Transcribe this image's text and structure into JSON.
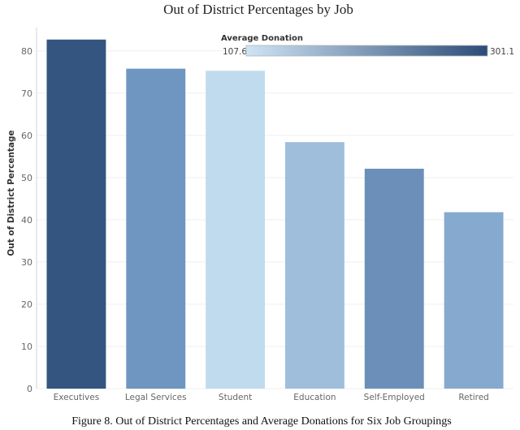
{
  "chart_data": {
    "type": "bar",
    "title": "Out of District Percentages by Job",
    "ylabel": "Out of District Percentage",
    "xlabel": "",
    "ylim": [
      0,
      84
    ],
    "yticks": [
      0,
      10,
      20,
      30,
      40,
      50,
      60,
      70,
      80
    ],
    "grid": true,
    "categories": [
      "Executives",
      "Legal Services",
      "Student",
      "Education",
      "Self-Employed",
      "Retired"
    ],
    "values": [
      82.7,
      75.8,
      75.3,
      58.4,
      52.1,
      41.8
    ],
    "colors": [
      "#335580",
      "#6e96c0",
      "#c0dbee",
      "#9ebedc",
      "#6b8fb9",
      "#86a9cf"
    ],
    "legend": {
      "title": "Average Donation",
      "min_label": "107.6",
      "max_label": "301.1",
      "min_color": "#cfe4f4",
      "max_color": "#2c4c78",
      "placement": "top-right"
    }
  },
  "caption": "Figure 8. Out of District Percentages and Average Donations for Six Job Groupings"
}
